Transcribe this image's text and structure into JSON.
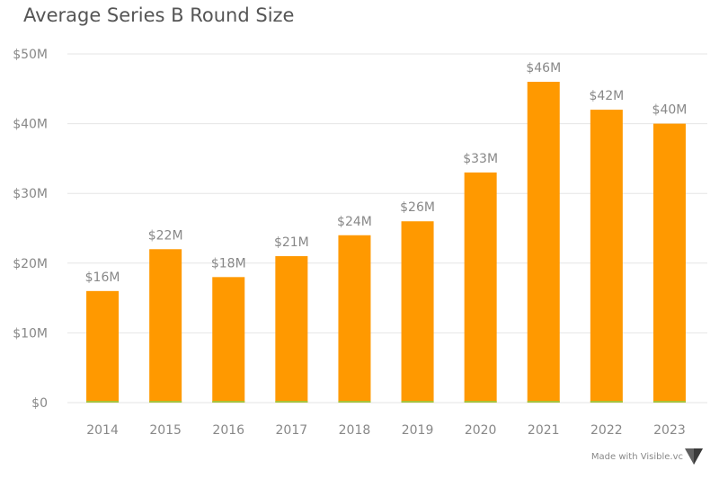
{
  "chart_data": {
    "type": "bar",
    "title": "Average Series B Round Size",
    "categories": [
      "2014",
      "2015",
      "2016",
      "2017",
      "2018",
      "2019",
      "2020",
      "2021",
      "2022",
      "2023"
    ],
    "values": [
      16,
      22,
      18,
      21,
      24,
      26,
      33,
      46,
      42,
      40
    ],
    "data_labels": [
      "$16M",
      "$22M",
      "$18M",
      "$21M",
      "$24M",
      "$26M",
      "$33M",
      "$46M",
      "$42M",
      "$40M"
    ],
    "y_ticks": [
      0,
      10,
      20,
      30,
      40,
      50
    ],
    "y_tick_labels": [
      "$0",
      "$10M",
      "$20M",
      "$30M",
      "$40M",
      "$50M"
    ],
    "ylim": [
      0,
      50
    ],
    "xlabel": "",
    "ylabel": "",
    "grid": true,
    "legend": "none"
  },
  "colors": {
    "bar": "#ff9900",
    "bar_base": "#a8c23a",
    "grid": "#e6e6e6",
    "text": "#888888",
    "title": "#555555",
    "logo": "#606060"
  },
  "footer": {
    "credit": "Made with Visible.vc",
    "logo_icon": "visible-logo-icon"
  }
}
